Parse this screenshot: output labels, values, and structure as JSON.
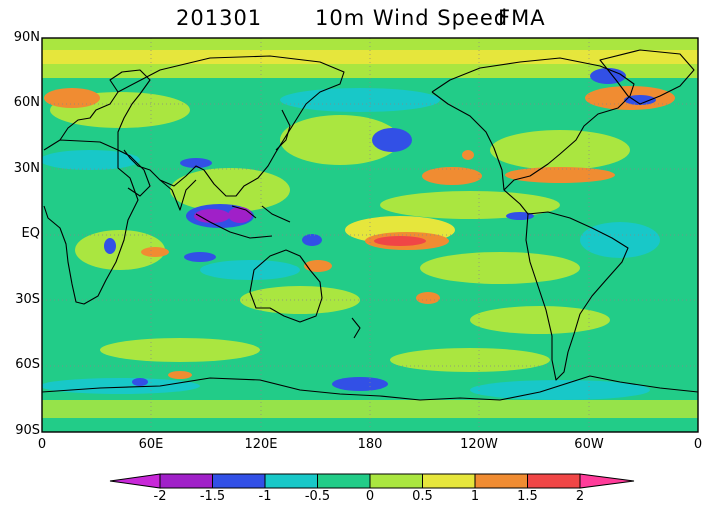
{
  "title": {
    "date": "201301",
    "variable": "10m Wind Speed",
    "season": "FMA"
  },
  "map": {
    "lat_labels": [
      "90N",
      "60N",
      "30N",
      "EQ",
      "30S",
      "60S",
      "90S"
    ],
    "lon_labels": [
      "0",
      "60E",
      "120E",
      "180",
      "120W",
      "60W",
      "0"
    ]
  },
  "colorbar": {
    "levels": [
      "-2",
      "-1.5",
      "-1",
      "-0.5",
      "0",
      "0.5",
      "1",
      "1.5",
      "2"
    ],
    "colors": [
      "#a020c8",
      "#3250e6",
      "#18c8c8",
      "#22cc88",
      "#aae640",
      "#e6e63c",
      "#f08c32",
      "#f04646"
    ],
    "low_arrow_color": "#c828d8",
    "high_arrow_color": "#ff3c9a"
  },
  "colors": {
    "ocean_base": "#22cc88",
    "land_outline": "#000000"
  }
}
